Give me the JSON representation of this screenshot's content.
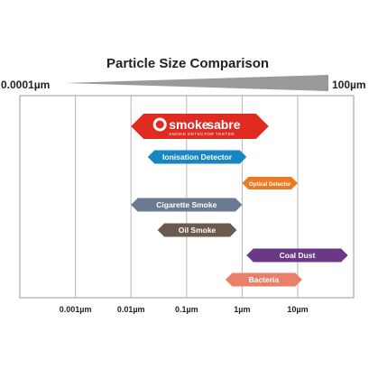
{
  "chart_data": {
    "type": "range-bar",
    "title": "Particle Size Comparison",
    "scale_label_left": "0.0001µm",
    "scale_label_right": "100µm",
    "x_scale": "log",
    "xlim": [
      0.0001,
      100
    ],
    "grid": true,
    "x_ticks": [
      {
        "value": 0.001,
        "label": "0.001µm"
      },
      {
        "value": 0.01,
        "label": "0.01µm"
      },
      {
        "value": 0.1,
        "label": "0.1µm"
      },
      {
        "value": 1,
        "label": "1µm"
      },
      {
        "value": 10,
        "label": "10µm"
      }
    ],
    "logo": {
      "word_a": "smoke",
      "word_b": "sabre",
      "tagline": "SMOKE DETECTOR TESTER",
      "min": 0.01,
      "max": 3,
      "color": "#e02b23"
    },
    "bars": [
      {
        "label": "Ionisation Detector",
        "min": 0.02,
        "max": 1.2,
        "color": "#1a85c3"
      },
      {
        "label": "Optical Detector",
        "min": 1,
        "max": 10,
        "color": "#e97b25"
      },
      {
        "label": "Cigarette Smoke",
        "min": 0.01,
        "max": 1,
        "color": "#6a7a90"
      },
      {
        "label": "Oil Smoke",
        "min": 0.03,
        "max": 0.8,
        "color": "#6b5a4e"
      },
      {
        "label": "Coal Dust",
        "min": 1.2,
        "max": 80,
        "color": "#6b3886"
      },
      {
        "label": "Bacteria",
        "min": 0.5,
        "max": 12,
        "color": "#e9806b"
      }
    ]
  }
}
